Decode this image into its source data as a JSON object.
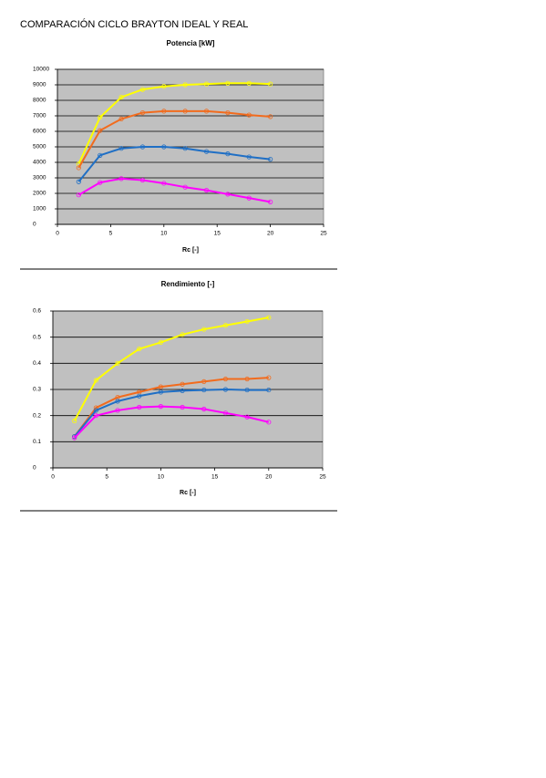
{
  "title": "COMPARACIÓN CICLO BRAYTON IDEAL Y REAL",
  "chart_data": [
    {
      "type": "line",
      "title": "Potencia [kW]",
      "x_label": "Rc [-]",
      "x": [
        2,
        4,
        6,
        8,
        10,
        12,
        14,
        16,
        18,
        20
      ],
      "series": [
        {
          "color": "#ffff00",
          "values": [
            3900,
            6900,
            8200,
            8700,
            8900,
            9000,
            9050,
            9100,
            9100,
            9050
          ]
        },
        {
          "color": "#f26b1d",
          "values": [
            3650,
            6050,
            6800,
            7200,
            7300,
            7300,
            7300,
            7200,
            7050,
            6950
          ]
        },
        {
          "color": "#1f6fc5",
          "values": [
            2750,
            4450,
            4900,
            5000,
            5000,
            4900,
            4700,
            4550,
            4350,
            4200
          ]
        },
        {
          "color": "#ff00ff",
          "values": [
            1900,
            2700,
            2950,
            2850,
            2650,
            2400,
            2200,
            1950,
            1700,
            1450
          ]
        }
      ],
      "xlim": [
        0,
        25
      ],
      "xticks": [
        0,
        5,
        10,
        15,
        20,
        25
      ],
      "ylim": [
        0,
        10000
      ],
      "yticks": [
        0,
        1000,
        2000,
        3000,
        4000,
        5000,
        6000,
        7000,
        8000,
        9000,
        10000
      ],
      "grid": true
    },
    {
      "type": "line",
      "title": "Rendimiento [-]",
      "x_label": "Rc [-]",
      "x": [
        2,
        4,
        6,
        8,
        10,
        12,
        14,
        16,
        18,
        20
      ],
      "series": [
        {
          "color": "#ffff00",
          "values": [
            0.18,
            0.335,
            0.4,
            0.455,
            0.48,
            0.51,
            0.53,
            0.545,
            0.56,
            0.575
          ]
        },
        {
          "color": "#f26b1d",
          "values": [
            0.12,
            0.23,
            0.27,
            0.29,
            0.31,
            0.32,
            0.33,
            0.34,
            0.34,
            0.345
          ]
        },
        {
          "color": "#1f6fc5",
          "values": [
            0.12,
            0.22,
            0.255,
            0.275,
            0.29,
            0.295,
            0.298,
            0.3,
            0.298,
            0.298
          ]
        },
        {
          "color": "#ff00ff",
          "values": [
            0.115,
            0.2,
            0.22,
            0.232,
            0.235,
            0.232,
            0.225,
            0.21,
            0.195,
            0.175
          ]
        }
      ],
      "xlim": [
        0,
        25
      ],
      "xticks": [
        0,
        5,
        10,
        15,
        20,
        25
      ],
      "ylim": [
        0,
        0.6
      ],
      "yticks": [
        0,
        0.1,
        0.2,
        0.3,
        0.4,
        0.5,
        0.6
      ],
      "grid": true
    }
  ]
}
